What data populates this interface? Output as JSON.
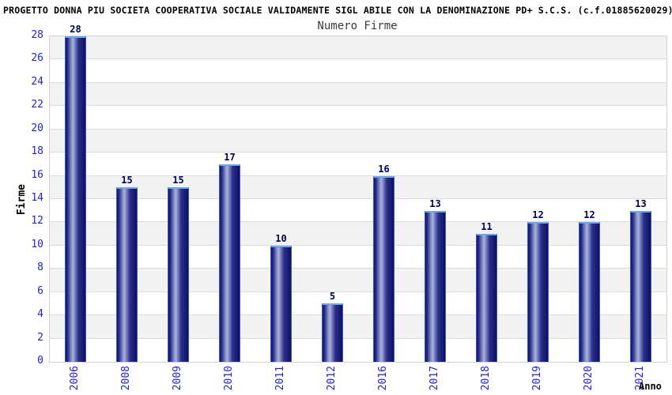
{
  "page_title": "PROGETTO DONNA PIU SOCIETA COOPERATIVA SOCIALE VALIDAMENTE SIGL ABILE CON LA DENOMINAZIONE PD+ S.C.S. (c.f.01885620029)",
  "chart_data": {
    "type": "bar",
    "title": "Numero Firme",
    "categories": [
      "2006",
      "2008",
      "2009",
      "2010",
      "2011",
      "2012",
      "2016",
      "2017",
      "2018",
      "2019",
      "2020",
      "2021"
    ],
    "values": [
      28,
      15,
      15,
      17,
      10,
      5,
      16,
      13,
      11,
      12,
      12,
      13
    ],
    "xlabel": "Anno",
    "ylabel": "Firme",
    "ylim": [
      0,
      28
    ],
    "ytick_step": 2,
    "grid": "horizontal, alternating 2-unit bands",
    "legend_position": "none"
  },
  "colors": {
    "tick_label": "#2323cd",
    "value_label": "#00005a",
    "band_gray": "#f2f2f2",
    "band_white": "#ffffff",
    "grid_line": "#dcdcdc",
    "plot_border": "#d2d2d2",
    "bar_dark": "#14146e",
    "bar_mid": "#2a2f8a",
    "bar_highlight": "#aab2da",
    "bar_border_top": "#6aa7f0",
    "bar_border_side": "#3058c8",
    "title_text": "#000000",
    "subtitle_text": "#3a3a3a"
  }
}
